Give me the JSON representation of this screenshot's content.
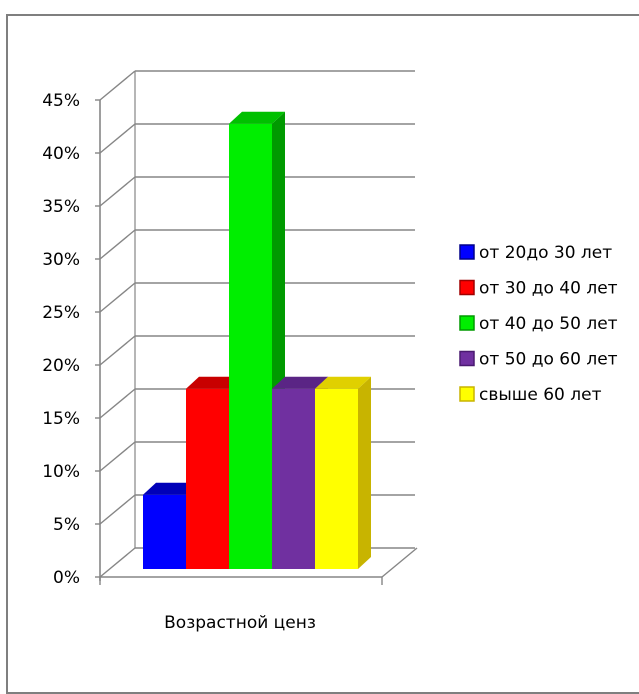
{
  "chart_data": {
    "type": "bar",
    "categories": [
      "Возрастной ценз"
    ],
    "series": [
      {
        "name": "от 20до 30 лет",
        "values": [
          0.07
        ],
        "color": "#0000ff",
        "side": "#00008a",
        "top": "#0000b8"
      },
      {
        "name": "от 30 до 40 лет",
        "values": [
          0.17
        ],
        "color": "#ff0000",
        "side": "#a00000",
        "top": "#c80000"
      },
      {
        "name": "от 40 до 50 лет",
        "values": [
          0.42
        ],
        "color": "#00ee00",
        "side": "#009a00",
        "top": "#00c000"
      },
      {
        "name": "от 50 до 60 лет",
        "values": [
          0.17
        ],
        "color": "#7030a0",
        "side": "#4a1a70",
        "top": "#5a2585"
      },
      {
        "name": "свыше 60 лет",
        "values": [
          0.17
        ],
        "color": "#ffff00",
        "side": "#c8b400",
        "top": "#e0d000"
      }
    ],
    "ylim": [
      0,
      0.45
    ],
    "yticks": [
      "0%",
      "5%",
      "10%",
      "15%",
      "20%",
      "25%",
      "30%",
      "35%",
      "40%",
      "45%"
    ],
    "grid": true,
    "legend": "right",
    "style": "3d-clustered-column"
  }
}
